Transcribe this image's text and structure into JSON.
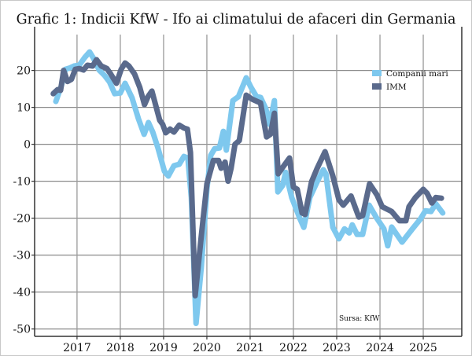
{
  "chart_data": {
    "type": "line",
    "title": "Grafic 1: Indicii KfW - Ifo ai climatului de afaceri din Germania",
    "xlabel": "",
    "ylabel": "",
    "xlim": [
      2016.02,
      2025.89
    ],
    "ylim": [
      -52,
      29.7
    ],
    "x_ticks": [
      "2017",
      "2018",
      "2019",
      "2020",
      "2021",
      "2022",
      "2023",
      "2024",
      "2025"
    ],
    "y_ticks": [
      "20",
      "10",
      "0",
      "-10",
      "-20",
      "-30",
      "-40",
      "-50"
    ],
    "grid": true,
    "legend_position": "top-right",
    "source": "Sursa: KfW",
    "series": [
      {
        "name": "Companii mari",
        "color": "#7ec8ee",
        "points": [
          [
            2016.51,
            11.6
          ],
          [
            2016.64,
            15.9
          ],
          [
            2016.73,
            20.3
          ],
          [
            2016.84,
            20.7
          ],
          [
            2016.93,
            21.2
          ],
          [
            2017.05,
            21.4
          ],
          [
            2017.18,
            23.5
          ],
          [
            2017.29,
            25
          ],
          [
            2017.38,
            23.3
          ],
          [
            2017.51,
            20.1
          ],
          [
            2017.64,
            18.6
          ],
          [
            2017.75,
            16.9
          ],
          [
            2017.87,
            13.7
          ],
          [
            2018.0,
            13.9
          ],
          [
            2018.11,
            16.5
          ],
          [
            2018.27,
            12.6
          ],
          [
            2018.42,
            6.9
          ],
          [
            2018.55,
            2.7
          ],
          [
            2018.65,
            5.9
          ],
          [
            2018.75,
            3.3
          ],
          [
            2018.87,
            -1
          ],
          [
            2019.02,
            -7.3
          ],
          [
            2019.11,
            -8.6
          ],
          [
            2019.24,
            -5.8
          ],
          [
            2019.36,
            -5.4
          ],
          [
            2019.47,
            -3.3
          ],
          [
            2019.56,
            -3.7
          ],
          [
            2019.64,
            -14.4
          ],
          [
            2019.75,
            -48.5
          ],
          [
            2019.87,
            -33.5
          ],
          [
            2020.0,
            -12.2
          ],
          [
            2020.09,
            -3
          ],
          [
            2020.18,
            -1.2
          ],
          [
            2020.29,
            -1
          ],
          [
            2020.38,
            3.5
          ],
          [
            2020.45,
            -1.6
          ],
          [
            2020.6,
            11.8
          ],
          [
            2020.73,
            12.9
          ],
          [
            2020.91,
            18
          ],
          [
            2021.02,
            15.4
          ],
          [
            2021.15,
            12.9
          ],
          [
            2021.24,
            12.7
          ],
          [
            2021.36,
            9.7
          ],
          [
            2021.45,
            5.4
          ],
          [
            2021.56,
            11.8
          ],
          [
            2021.64,
            -12.9
          ],
          [
            2021.75,
            -11.2
          ],
          [
            2021.82,
            -7.6
          ],
          [
            2021.96,
            -14.4
          ],
          [
            2022.15,
            -20.1
          ],
          [
            2022.24,
            -22.5
          ],
          [
            2022.38,
            -14.4
          ],
          [
            2022.55,
            -10.1
          ],
          [
            2022.69,
            -6.9
          ],
          [
            2022.75,
            -8
          ],
          [
            2022.91,
            -22.5
          ],
          [
            2023.05,
            -25.6
          ],
          [
            2023.18,
            -22.9
          ],
          [
            2023.29,
            -24
          ],
          [
            2023.36,
            -21.8
          ],
          [
            2023.47,
            -24.4
          ],
          [
            2023.6,
            -24.4
          ],
          [
            2023.75,
            -16.5
          ],
          [
            2023.93,
            -20.1
          ],
          [
            2024.09,
            -22.9
          ],
          [
            2024.18,
            -27.5
          ],
          [
            2024.27,
            -22.4
          ],
          [
            2024.51,
            -26.5
          ],
          [
            2024.75,
            -22.9
          ],
          [
            2024.93,
            -20.3
          ],
          [
            2025.05,
            -18
          ],
          [
            2025.18,
            -18.2
          ],
          [
            2025.29,
            -16.1
          ],
          [
            2025.45,
            -18.6
          ]
        ]
      },
      {
        "name": "IMM",
        "color": "#5a6a8c",
        "points": [
          [
            2016.45,
            13.7
          ],
          [
            2016.55,
            14.8
          ],
          [
            2016.62,
            14.6
          ],
          [
            2016.69,
            20
          ],
          [
            2016.78,
            17
          ],
          [
            2016.87,
            17.6
          ],
          [
            2016.96,
            20.3
          ],
          [
            2017.05,
            20.5
          ],
          [
            2017.15,
            20.1
          ],
          [
            2017.24,
            21.4
          ],
          [
            2017.36,
            21.2
          ],
          [
            2017.45,
            22.9
          ],
          [
            2017.56,
            21.2
          ],
          [
            2017.69,
            20.5
          ],
          [
            2017.78,
            19
          ],
          [
            2017.91,
            16.5
          ],
          [
            2018.02,
            20.3
          ],
          [
            2018.11,
            22
          ],
          [
            2018.2,
            21.2
          ],
          [
            2018.33,
            19
          ],
          [
            2018.45,
            15.4
          ],
          [
            2018.56,
            10.7
          ],
          [
            2018.64,
            12.9
          ],
          [
            2018.73,
            14.4
          ],
          [
            2018.82,
            10.5
          ],
          [
            2018.91,
            6.5
          ],
          [
            2018.98,
            5.4
          ],
          [
            2019.05,
            3.1
          ],
          [
            2019.15,
            4.1
          ],
          [
            2019.24,
            3.3
          ],
          [
            2019.36,
            5.2
          ],
          [
            2019.47,
            4.4
          ],
          [
            2019.55,
            4.1
          ],
          [
            2019.62,
            -2.2
          ],
          [
            2019.73,
            -41
          ],
          [
            2019.87,
            -25
          ],
          [
            2020.0,
            -10.7
          ],
          [
            2020.15,
            -4.4
          ],
          [
            2020.27,
            -4.4
          ],
          [
            2020.33,
            -6.5
          ],
          [
            2020.42,
            -4.8
          ],
          [
            2020.49,
            -10
          ],
          [
            2020.56,
            -6.5
          ],
          [
            2020.65,
            0
          ],
          [
            2020.75,
            1
          ],
          [
            2020.91,
            13.3
          ],
          [
            2021.05,
            12.2
          ],
          [
            2021.24,
            11.2
          ],
          [
            2021.38,
            2
          ],
          [
            2021.47,
            2.7
          ],
          [
            2021.56,
            8.4
          ],
          [
            2021.65,
            -8
          ],
          [
            2021.75,
            -6.3
          ],
          [
            2021.91,
            -3.7
          ],
          [
            2022.0,
            -11.6
          ],
          [
            2022.09,
            -12.2
          ],
          [
            2022.2,
            -18.6
          ],
          [
            2022.27,
            -19
          ],
          [
            2022.42,
            -10.1
          ],
          [
            2022.55,
            -6.5
          ],
          [
            2022.73,
            -2
          ],
          [
            2022.91,
            -8.6
          ],
          [
            2023.05,
            -15
          ],
          [
            2023.15,
            -16.5
          ],
          [
            2023.33,
            -14
          ],
          [
            2023.51,
            -19.7
          ],
          [
            2023.6,
            -19.3
          ],
          [
            2023.76,
            -10.7
          ],
          [
            2023.93,
            -13.7
          ],
          [
            2024.05,
            -16.9
          ],
          [
            2024.27,
            -18.2
          ],
          [
            2024.45,
            -20.7
          ],
          [
            2024.6,
            -20.7
          ],
          [
            2024.67,
            -16.9
          ],
          [
            2024.82,
            -14.4
          ],
          [
            2025.0,
            -12.2
          ],
          [
            2025.09,
            -13.3
          ],
          [
            2025.2,
            -15.9
          ],
          [
            2025.29,
            -14.4
          ],
          [
            2025.42,
            -14.6
          ]
        ]
      }
    ]
  }
}
